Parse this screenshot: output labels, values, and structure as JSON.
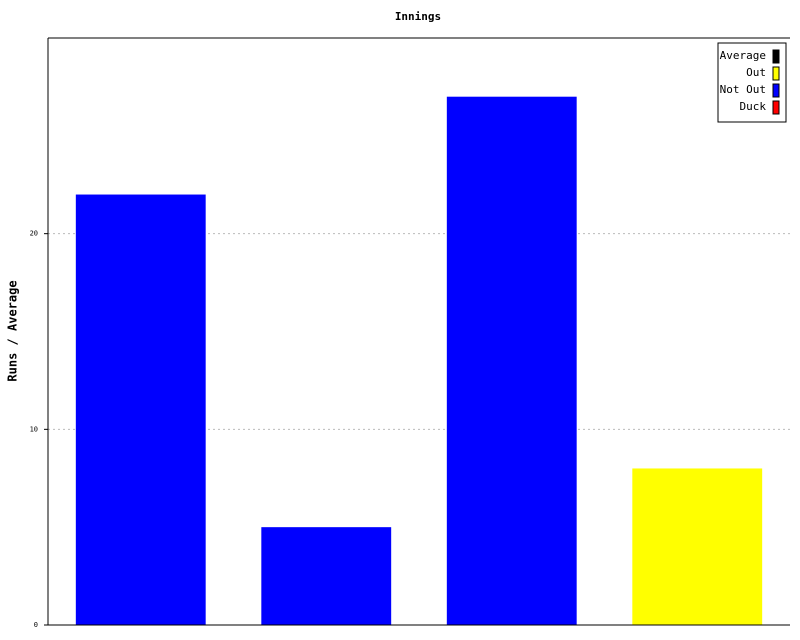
{
  "chart_data": {
    "type": "bar",
    "title": "Innings",
    "y_label": "Runs / Average",
    "categories": [
      null,
      null,
      null,
      null
    ],
    "values": [
      22,
      5,
      27,
      8
    ],
    "colors": [
      "#0000ff",
      "#0000ff",
      "#0000ff",
      "#ffff00"
    ],
    "ylim": [
      0,
      30
    ],
    "yticks": [
      0,
      10,
      20
    ],
    "grid": true,
    "legend_position": "upper right",
    "legend": [
      {
        "name": "Average",
        "color": "#000000"
      },
      {
        "name": "Out",
        "color": "#ffff00"
      },
      {
        "name": "Not Out",
        "color": "#0000ff"
      },
      {
        "name": "Duck",
        "color": "#ff0000"
      }
    ]
  }
}
